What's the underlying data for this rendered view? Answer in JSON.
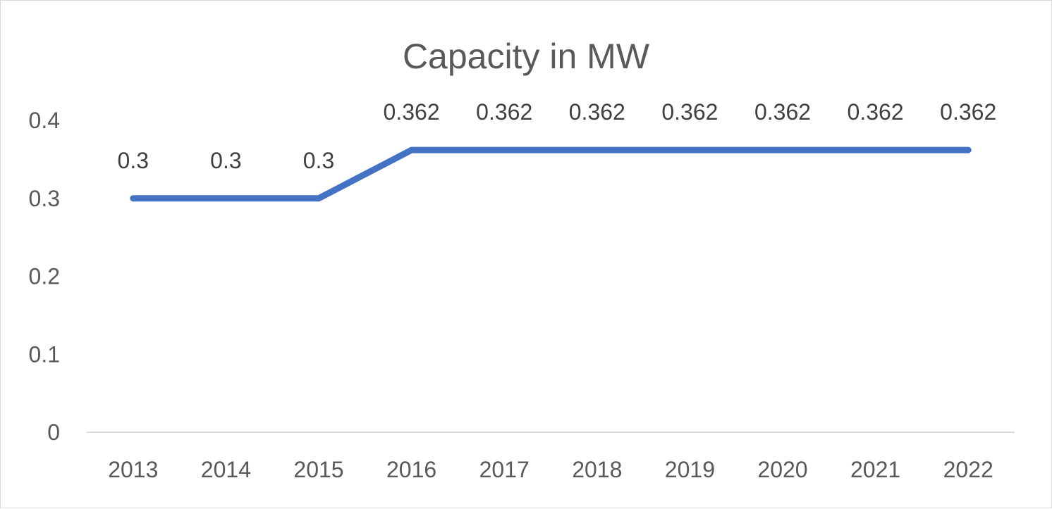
{
  "chart_data": {
    "type": "line",
    "title": "Capacity in MW",
    "xlabel": "",
    "ylabel": "",
    "categories": [
      "2013",
      "2014",
      "2015",
      "2016",
      "2017",
      "2018",
      "2019",
      "2020",
      "2021",
      "2022"
    ],
    "series": [
      {
        "name": "Capacity in MW",
        "values": [
          0.3,
          0.3,
          0.3,
          0.362,
          0.362,
          0.362,
          0.362,
          0.362,
          0.362,
          0.362
        ],
        "data_labels": [
          "0.3",
          "0.3",
          "0.3",
          "0.362",
          "0.362",
          "0.362",
          "0.362",
          "0.362",
          "0.362",
          "0.362"
        ]
      }
    ],
    "ylim": [
      0,
      0.4
    ],
    "yticks": [
      "0",
      "0.1",
      "0.2",
      "0.3",
      "0.4"
    ],
    "grid": false,
    "legend": "none",
    "colors": {
      "line": "#4472c4",
      "axis": "#d9d9d9",
      "text": "#595959"
    }
  }
}
